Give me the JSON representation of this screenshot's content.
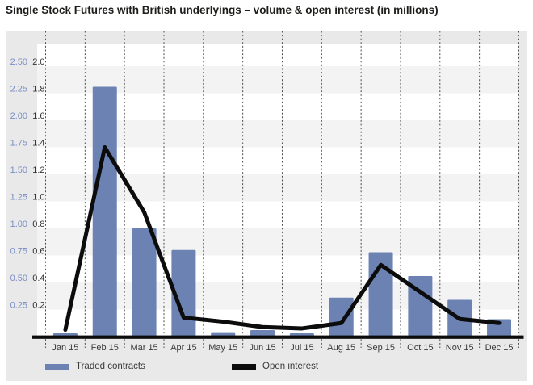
{
  "title": "Single Stock Futures with British underlyings – volume & open interest (in millions)",
  "chart_data": {
    "type": "bar+line",
    "categories": [
      "Jan 15",
      "Feb 15",
      "Mar 15",
      "Apr 15",
      "May 15",
      "Jun 15",
      "Jul 15",
      "Aug 15",
      "Sep 15",
      "Oct 15",
      "Nov 15",
      "Dec 15"
    ],
    "series": [
      {
        "name": "Traded contracts",
        "type": "bar",
        "axis": "blue",
        "values": [
          0.03,
          2.31,
          1.0,
          0.8,
          0.04,
          0.06,
          0.03,
          0.36,
          0.78,
          0.56,
          0.34,
          0.16
        ]
      },
      {
        "name": "Open interest",
        "type": "line",
        "axis": "black",
        "values": [
          0.05,
          1.4,
          0.92,
          0.14,
          0.11,
          0.07,
          0.06,
          0.1,
          0.53,
          0.33,
          0.13,
          0.1
        ]
      }
    ],
    "y_axis_blue": {
      "ticks": [
        "0.25",
        "0.50",
        "0.75",
        "1.00",
        "1.25",
        "1.50",
        "1.75",
        "2.00",
        "2.25",
        "2.50"
      ],
      "min": 0,
      "max": 2.7,
      "step": 0.25
    },
    "y_axis_black": {
      "ticks": [
        "0.2",
        "0.4",
        "0.6",
        "0.8",
        "1.0",
        "1.2",
        "1.4",
        "1.6",
        "1.8",
        "2.0"
      ],
      "min": 0,
      "max": 2.16,
      "step": 0.2
    },
    "grid": "alternating horizontal bands every 0.2 (black scale), dashed vertical month separators",
    "legend_position": "bottom-left",
    "unit": "millions"
  },
  "colors": {
    "bar": "#6b82b3",
    "line": "#0c0c0c",
    "panel_bg": "#e9e9e9",
    "band_gray": "#f3f3f3",
    "band_white": "#ffffff",
    "dash": "#4d4d4d",
    "axis_text": "#3a3a3a",
    "blue_label": "#7a8ec4",
    "black_label": "#333333",
    "baseline": "#0b0b0b",
    "title_text": "#1d1d1b"
  }
}
